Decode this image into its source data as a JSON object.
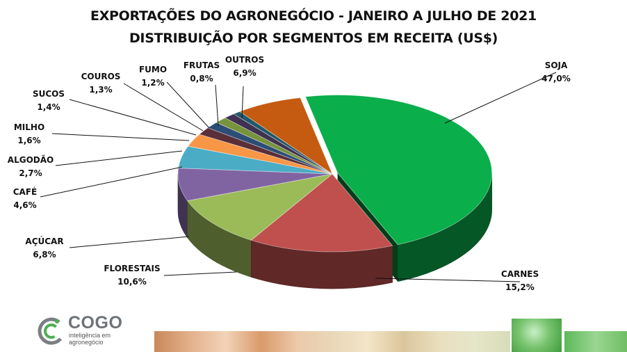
{
  "header": {
    "title_line1": "EXPORTAÇÕES DO AGRONEGÓCIO - JANEIRO A JULHO DE 2021",
    "title_line2": "DISTRIBUIÇÃO POR SEGMENTOS EM RECEITA (US$)"
  },
  "chart_data": {
    "type": "pie",
    "style": "3d-exploded",
    "title": "EXPORTAÇÕES DO AGRONEGÓCIO - JANEIRO A JULHO DE 2021 DISTRIBUIÇÃO POR SEGMENTOS EM RECEITA (US$)",
    "slices": [
      {
        "label": "SOJA",
        "value_label": "47,0%",
        "value": 47.0,
        "color": "#0aae4b"
      },
      {
        "label": "CARNES",
        "value_label": "15,2%",
        "value": 15.2,
        "color": "#c0504d"
      },
      {
        "label": "FLORESTAIS",
        "value_label": "10,6%",
        "value": 10.6,
        "color": "#9bbb59"
      },
      {
        "label": "AÇÚCAR",
        "value_label": "6,8%",
        "value": 6.8,
        "color": "#8064a2"
      },
      {
        "label": "CAFÉ",
        "value_label": "4,6%",
        "value": 4.6,
        "color": "#4bacc6"
      },
      {
        "label": "ALGODÃO",
        "value_label": "2,7%",
        "value": 2.7,
        "color": "#f79646"
      },
      {
        "label": "MILHO",
        "value_label": "1,6%",
        "value": 1.6,
        "color": "#5a2f39"
      },
      {
        "label": "SUCOS",
        "value_label": "1,4%",
        "value": 1.4,
        "color": "#2c4d75"
      },
      {
        "label": "COUROS",
        "value_label": "1,3%",
        "value": 1.3,
        "color": "#77933c"
      },
      {
        "label": "FUMO",
        "value_label": "1,2%",
        "value": 1.2,
        "color": "#403152"
      },
      {
        "label": "FRUTAS",
        "value_label": "0,8%",
        "value": 0.8,
        "color": "#215968"
      },
      {
        "label": "OUTROS",
        "value_label": "6,9%",
        "value": 6.9,
        "color": "#c55a11"
      }
    ]
  },
  "brand": {
    "name": "COGO",
    "tagline_line1": "inteligência em",
    "tagline_line2": "agronegócio"
  }
}
